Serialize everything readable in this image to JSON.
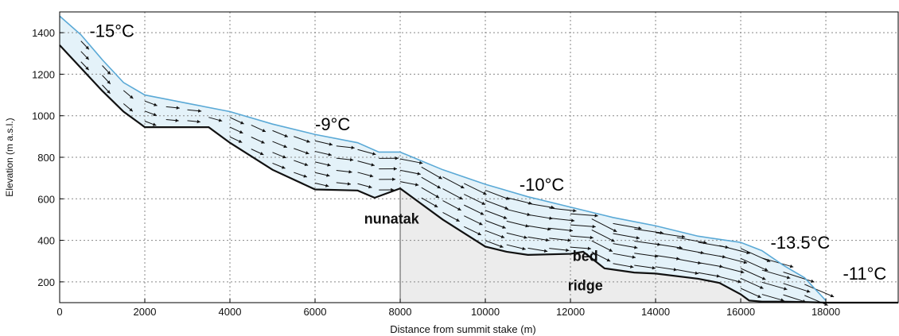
{
  "chart_data": {
    "type": "line",
    "title": "",
    "xlabel": "Distance from summit stake (m)",
    "ylabel": "Elevation (m a.s.l.)",
    "xlim": [
      0,
      19700
    ],
    "ylim": [
      100,
      1500
    ],
    "xticks": [
      0,
      2000,
      4000,
      6000,
      8000,
      10000,
      12000,
      14000,
      16000,
      18000
    ],
    "yticks": [
      200,
      400,
      600,
      800,
      1000,
      1200,
      1400
    ],
    "grid": true,
    "colors": {
      "surface": "#5aa9d6",
      "bed": "#111111",
      "ice_fill": "#e4f2f9",
      "bed_fill": "#ececec",
      "grid": "#888888"
    },
    "series": [
      {
        "role": "surface",
        "x": [
          0,
          500,
          1000,
          1500,
          2000,
          3000,
          4000,
          5000,
          6000,
          7000,
          7500,
          8000,
          9000,
          10000,
          11000,
          12000,
          13000,
          14000,
          15000,
          16000,
          16500,
          17000,
          17500,
          18000
        ],
        "y": [
          1480,
          1390,
          1270,
          1160,
          1100,
          1060,
          1020,
          960,
          910,
          870,
          825,
          825,
          740,
          670,
          610,
          560,
          510,
          470,
          420,
          390,
          350,
          280,
          220,
          110
        ]
      },
      {
        "role": "bed",
        "x": [
          0,
          500,
          1000,
          1500,
          1900,
          2000,
          3500,
          4000,
          5000,
          6000,
          7000,
          7400,
          8000,
          9000,
          10000,
          10500,
          11000,
          12000,
          12300,
          12800,
          13500,
          14000,
          15000,
          15500,
          16000,
          16200,
          16500,
          17000,
          17500,
          18000,
          19700
        ],
        "y": [
          1340,
          1230,
          1120,
          1020,
          960,
          945,
          945,
          870,
          740,
          645,
          640,
          605,
          650,
          500,
          370,
          345,
          330,
          335,
          345,
          265,
          245,
          240,
          215,
          195,
          140,
          110,
          105,
          105,
          103,
          100,
          100
        ]
      }
    ],
    "nunatak_line_x": 8000,
    "arrows": {
      "columns": [
        500,
        1000,
        1500,
        2000,
        2500,
        3000,
        3500,
        4000,
        4500,
        5000,
        5500,
        6000,
        6500,
        7000,
        7500,
        8000,
        8500,
        9000,
        9500,
        10000,
        10500,
        11000,
        11500,
        12000,
        12500,
        13000,
        13500,
        14000,
        14500,
        15000,
        15500,
        16000,
        16500,
        17000,
        17500
      ],
      "spacing": 50
    },
    "annotations": [
      {
        "text": "-15°C",
        "x": 700,
        "y": 1380,
        "kind": "temp"
      },
      {
        "text": "-9°C",
        "x": 6000,
        "y": 930,
        "kind": "temp"
      },
      {
        "text": "-10°C",
        "x": 10800,
        "y": 640,
        "kind": "temp"
      },
      {
        "text": "-13.5°C",
        "x": 16700,
        "y": 360,
        "kind": "temp"
      },
      {
        "text": "-11°C",
        "x": 18400,
        "y": 210,
        "kind": "temp"
      },
      {
        "text": "nunatak",
        "x": 7800,
        "y": 480,
        "kind": "feature"
      },
      {
        "text": "bed",
        "x": 12350,
        "y": 300,
        "kind": "feature"
      },
      {
        "text": "ridge",
        "x": 12350,
        "y": 160,
        "kind": "feature"
      }
    ]
  }
}
